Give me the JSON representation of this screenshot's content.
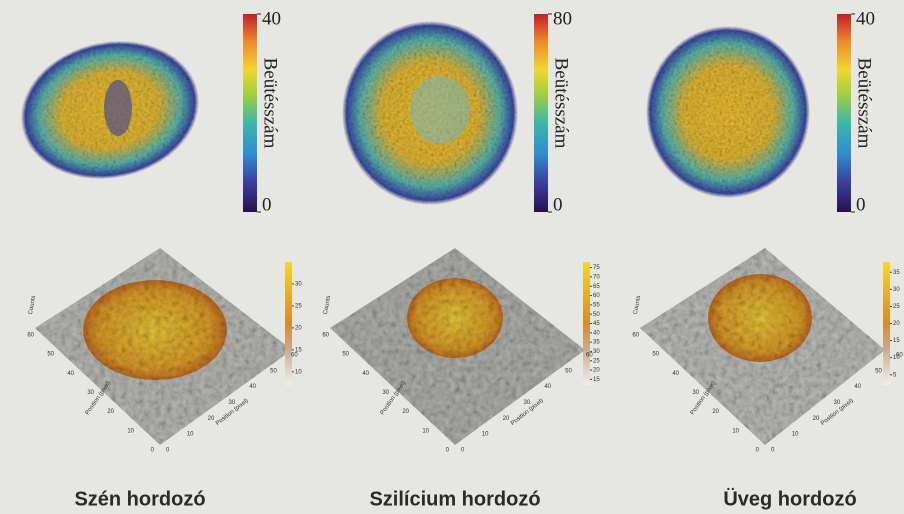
{
  "chart_data": [
    {
      "type": "heatmap",
      "caption": "Szén hordozó",
      "colorbar": {
        "label": "Beütésszám",
        "lim": [
          0,
          40
        ],
        "ticks": [
          0,
          40
        ]
      },
      "surface": {
        "zlabel": "Counts",
        "xlabel": "Position (pixel)",
        "ylabel": "Position (pixel)",
        "xticks": [
          0,
          10,
          20,
          30,
          40,
          50,
          60
        ],
        "yticks": [
          0,
          10,
          20,
          30,
          40,
          50,
          60
        ],
        "colorbar_lim": [
          7,
          35
        ],
        "colorbar_ticks": [
          10,
          15,
          20,
          25,
          30
        ]
      }
    },
    {
      "type": "heatmap",
      "caption": "Szilícium hordozó",
      "colorbar": {
        "label": "Beütésszám",
        "lim": [
          0,
          80
        ],
        "ticks": [
          0,
          80
        ]
      },
      "surface": {
        "zlabel": "Counts",
        "xlabel": "Position (pixel)",
        "ylabel": "Position (pixel)",
        "xticks": [
          0,
          10,
          20,
          30,
          40,
          50,
          60
        ],
        "yticks": [
          0,
          10,
          20,
          30,
          40,
          50,
          60
        ],
        "colorbar_lim": [
          12,
          78
        ],
        "colorbar_ticks": [
          15,
          20,
          25,
          30,
          35,
          40,
          45,
          50,
          55,
          60,
          65,
          70,
          75
        ]
      }
    },
    {
      "type": "heatmap",
      "caption": "Üveg hordozó",
      "colorbar": {
        "label": "Beütésszám",
        "lim": [
          0,
          40
        ],
        "ticks": [
          0,
          40
        ]
      },
      "surface": {
        "zlabel": "Counts",
        "xlabel": "Position (pixel)",
        "ylabel": "Position (pixel)",
        "xticks": [
          0,
          10,
          20,
          30,
          40,
          50,
          60
        ],
        "yticks": [
          0,
          10,
          20,
          30,
          40,
          50,
          60
        ],
        "colorbar_lim": [
          2,
          38
        ],
        "colorbar_ticks": [
          5,
          10,
          15,
          20,
          25,
          30,
          35
        ]
      }
    }
  ]
}
